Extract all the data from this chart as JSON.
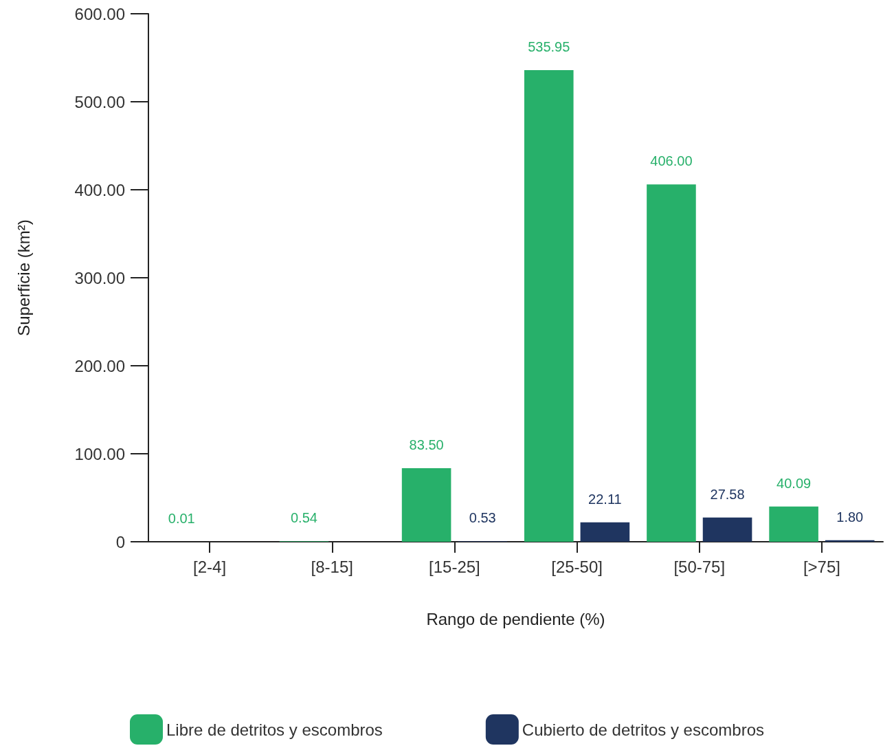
{
  "chart_data": {
    "type": "bar",
    "xlabel": "Rango de pendiente (%)",
    "ylabel": "Superficie (km²)",
    "categories": [
      "[2-4]",
      "[8-15]",
      "[15-25]",
      "[25-50]",
      "[50-75]",
      "[>75]"
    ],
    "series": [
      {
        "name": "Libre de detritos y escombros",
        "color": "#27b06a",
        "values": [
          0.01,
          0.54,
          83.5,
          535.95,
          406.0,
          40.09
        ],
        "value_labels": [
          "0.01",
          "0.54",
          "83.50",
          "535.95",
          "406.00",
          "40.09"
        ]
      },
      {
        "name": "Cubierto de detritos y escombros",
        "color": "#1f3560",
        "values": [
          null,
          null,
          0.53,
          22.11,
          27.58,
          1.8
        ],
        "value_labels": [
          null,
          null,
          "0.53",
          "22.11",
          "27.58",
          "1.80"
        ]
      }
    ],
    "ylim": [
      0,
      600
    ],
    "yticks": [
      {
        "value": 0,
        "label": "0"
      },
      {
        "value": 100,
        "label": "100.00"
      },
      {
        "value": 200,
        "label": "200.00"
      },
      {
        "value": 300,
        "label": "300.00"
      },
      {
        "value": 400,
        "label": "400.00"
      },
      {
        "value": 500,
        "label": "500.00"
      },
      {
        "value": 600,
        "label": "600.00"
      }
    ],
    "grid": false,
    "legend": "bottom"
  }
}
